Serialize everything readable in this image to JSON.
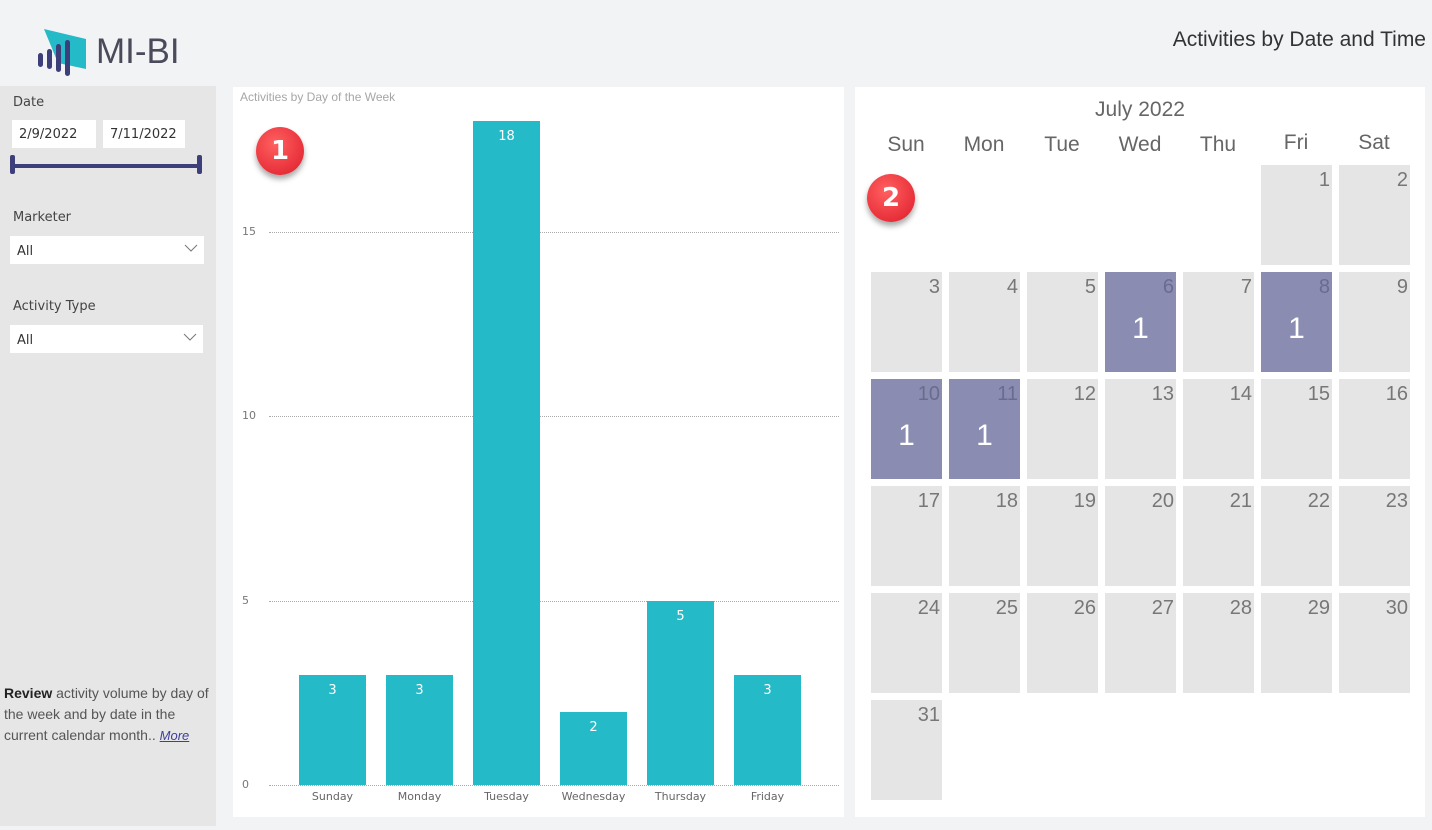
{
  "app": {
    "logo_text": "MI-BI",
    "page_title": "Activities by Date and Time"
  },
  "colors": {
    "bar": "#25bac7",
    "calendar_active": "#8a8cb2",
    "calendar_inactive": "#e5e5e5",
    "slider": "#3d3f7a",
    "badge": "#e8303a"
  },
  "sidebar": {
    "date": {
      "label": "Date",
      "start": "2/9/2022",
      "end": "7/11/2022"
    },
    "marketer": {
      "label": "Marketer",
      "value": "All"
    },
    "activity_type": {
      "label": "Activity Type",
      "value": "All"
    },
    "description": {
      "bold": "Review",
      "text": " activity volume by day of the week and by date in the current calendar month.. ",
      "link": "More"
    }
  },
  "badges": {
    "one": "1",
    "two": "2"
  },
  "chart_data": {
    "type": "bar",
    "title": "Activities by Day of the Week",
    "categories": [
      "Sunday",
      "Monday",
      "Tuesday",
      "Wednesday",
      "Thursday",
      "Friday"
    ],
    "values": [
      3,
      3,
      18,
      2,
      5,
      3
    ],
    "labels": [
      "3",
      "3",
      "18",
      "2",
      "5",
      "3"
    ],
    "yticks": [
      "0",
      "5",
      "10",
      "15"
    ],
    "xlabel": "",
    "ylabel": "",
    "ylim": [
      0,
      18
    ],
    "grid": true,
    "legend": false
  },
  "calendar": {
    "month": "July 2022",
    "weekdays": [
      "Sun",
      "Mon",
      "Tue",
      "Wed",
      "Thu",
      "Fri",
      "Sat"
    ],
    "days": [
      {
        "d": "1",
        "c": 5,
        "r": 0,
        "n": ""
      },
      {
        "d": "2",
        "c": 6,
        "r": 0,
        "n": ""
      },
      {
        "d": "3",
        "c": 0,
        "r": 1,
        "n": ""
      },
      {
        "d": "4",
        "c": 1,
        "r": 1,
        "n": ""
      },
      {
        "d": "5",
        "c": 2,
        "r": 1,
        "n": ""
      },
      {
        "d": "6",
        "c": 3,
        "r": 1,
        "n": "1"
      },
      {
        "d": "7",
        "c": 4,
        "r": 1,
        "n": ""
      },
      {
        "d": "8",
        "c": 5,
        "r": 1,
        "n": "1"
      },
      {
        "d": "9",
        "c": 6,
        "r": 1,
        "n": ""
      },
      {
        "d": "10",
        "c": 0,
        "r": 2,
        "n": "1"
      },
      {
        "d": "11",
        "c": 1,
        "r": 2,
        "n": "1"
      },
      {
        "d": "12",
        "c": 2,
        "r": 2,
        "n": ""
      },
      {
        "d": "13",
        "c": 3,
        "r": 2,
        "n": ""
      },
      {
        "d": "14",
        "c": 4,
        "r": 2,
        "n": ""
      },
      {
        "d": "15",
        "c": 5,
        "r": 2,
        "n": ""
      },
      {
        "d": "16",
        "c": 6,
        "r": 2,
        "n": ""
      },
      {
        "d": "17",
        "c": 0,
        "r": 3,
        "n": ""
      },
      {
        "d": "18",
        "c": 1,
        "r": 3,
        "n": ""
      },
      {
        "d": "19",
        "c": 2,
        "r": 3,
        "n": ""
      },
      {
        "d": "20",
        "c": 3,
        "r": 3,
        "n": ""
      },
      {
        "d": "21",
        "c": 4,
        "r": 3,
        "n": ""
      },
      {
        "d": "22",
        "c": 5,
        "r": 3,
        "n": ""
      },
      {
        "d": "23",
        "c": 6,
        "r": 3,
        "n": ""
      },
      {
        "d": "24",
        "c": 0,
        "r": 4,
        "n": ""
      },
      {
        "d": "25",
        "c": 1,
        "r": 4,
        "n": ""
      },
      {
        "d": "26",
        "c": 2,
        "r": 4,
        "n": ""
      },
      {
        "d": "27",
        "c": 3,
        "r": 4,
        "n": ""
      },
      {
        "d": "28",
        "c": 4,
        "r": 4,
        "n": ""
      },
      {
        "d": "29",
        "c": 5,
        "r": 4,
        "n": ""
      },
      {
        "d": "30",
        "c": 6,
        "r": 4,
        "n": ""
      },
      {
        "d": "31",
        "c": 0,
        "r": 5,
        "n": ""
      }
    ]
  }
}
